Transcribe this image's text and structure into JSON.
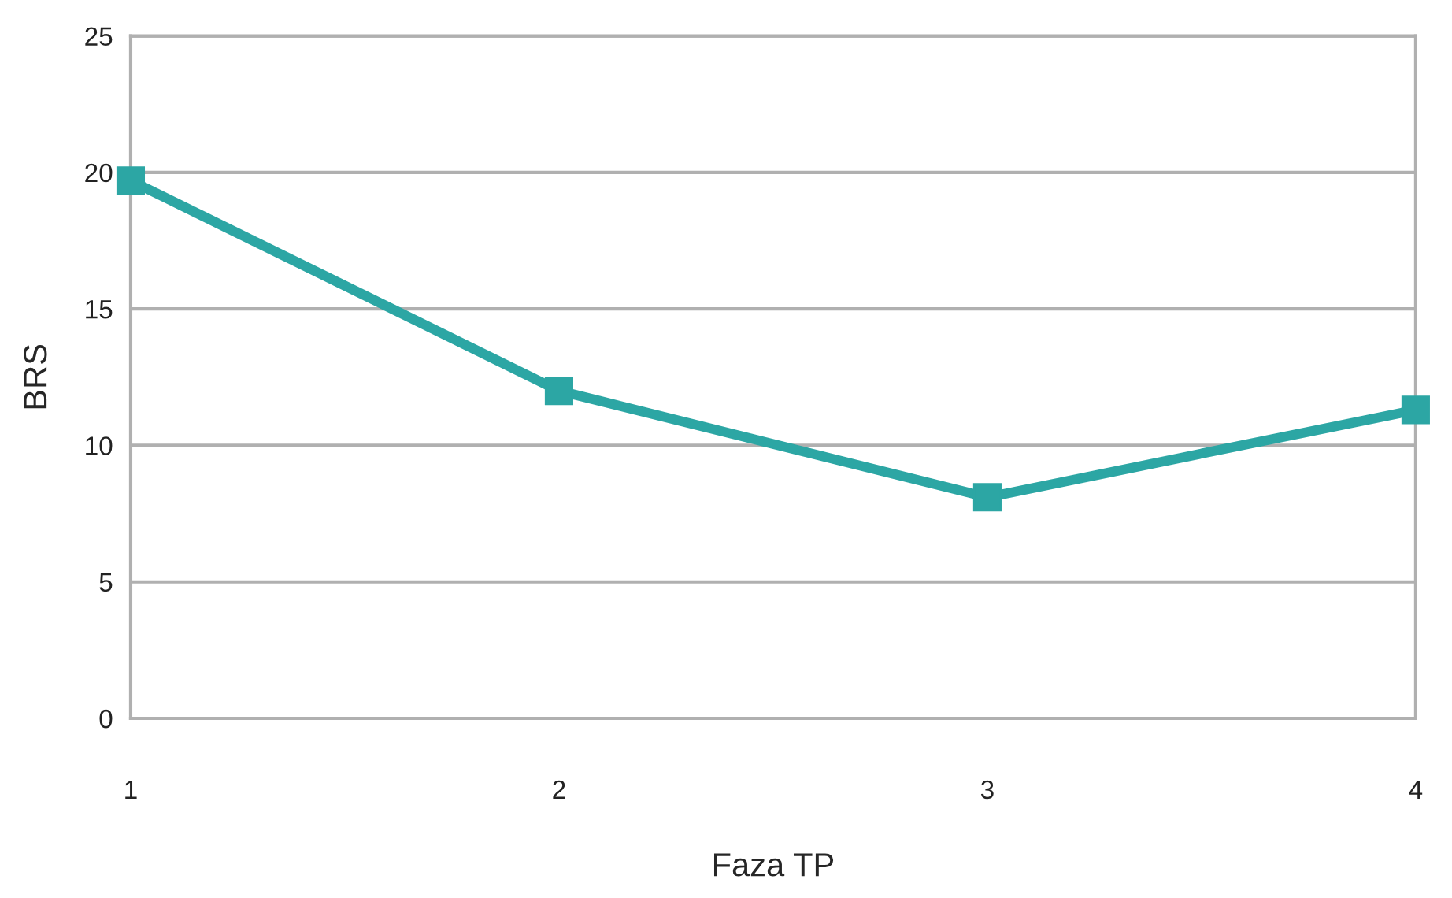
{
  "chart_data": {
    "type": "line",
    "xlabel": "Faza TP",
    "ylabel": "BRS",
    "x": [
      1,
      2,
      3,
      4
    ],
    "series": [
      {
        "color": "#2ca6a4",
        "values": [
          19.7,
          12.0,
          8.1,
          11.3
        ]
      }
    ],
    "xlim": [
      1,
      4
    ],
    "xticks": [
      1,
      2,
      3,
      4
    ],
    "ylim": [
      0,
      25
    ],
    "yticks": [
      0,
      5,
      10,
      15,
      20,
      25
    ],
    "grid": "y",
    "marker": "square",
    "line_style": "solid",
    "legend": false
  }
}
